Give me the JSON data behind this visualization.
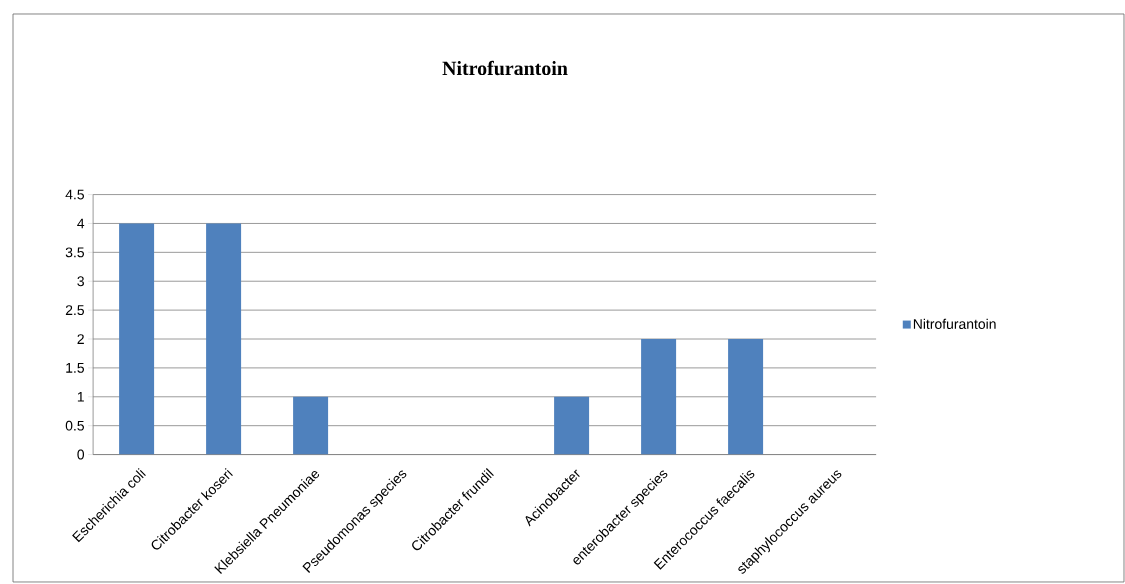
{
  "chart_data": {
    "type": "bar",
    "title": "Nitrofurantoin",
    "categories": [
      "Escherichia coli",
      "Citrobacter koseri",
      "Klebsiella Pneumoniae",
      "Pseudomonas species",
      "Citrobacter frundil",
      "Acinobacter",
      "enterobacter species",
      "Enterococcus faecalis",
      "staphylococcus aureus"
    ],
    "series": [
      {
        "name": "Nitrofurantoin",
        "color": "#4f81bd",
        "values": [
          4,
          4,
          1,
          0,
          0,
          1,
          2,
          2,
          0
        ]
      }
    ],
    "ylim": [
      0,
      4.5
    ],
    "yticks": [
      0,
      0.5,
      1,
      1.5,
      2,
      2.5,
      3,
      3.5,
      4,
      4.5
    ],
    "grid": "y",
    "legend": "right"
  }
}
